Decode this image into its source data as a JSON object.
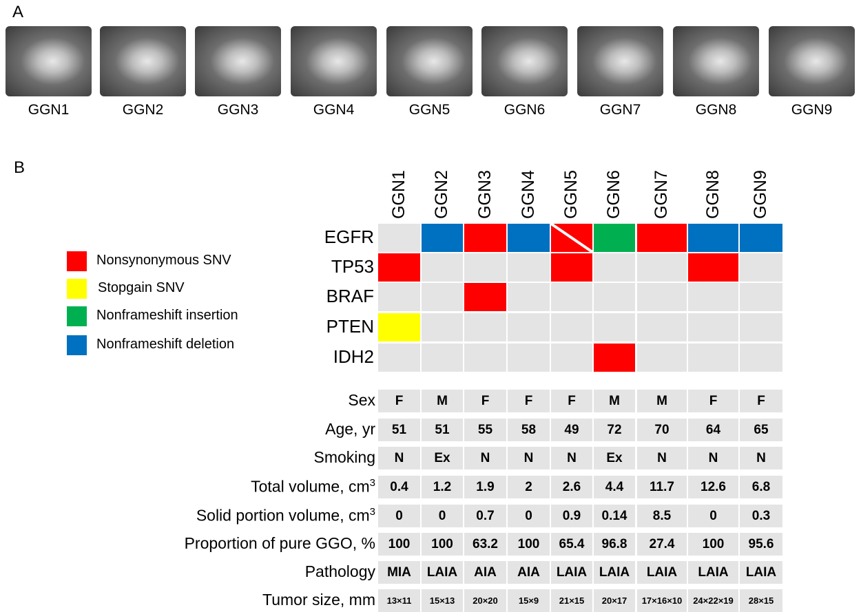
{
  "panel_a": {
    "label": "A",
    "images": [
      {
        "caption": "GGN1"
      },
      {
        "caption": "GGN2"
      },
      {
        "caption": "GGN3"
      },
      {
        "caption": "GGN4"
      },
      {
        "caption": "GGN5"
      },
      {
        "caption": "GGN6"
      },
      {
        "caption": "GGN7"
      },
      {
        "caption": "GGN8"
      },
      {
        "caption": "GGN9"
      }
    ]
  },
  "panel_b": {
    "label": "B",
    "columns": [
      "GGN1",
      "GGN2",
      "GGN3",
      "GGN4",
      "GGN5",
      "GGN6",
      "GGN7",
      "GGN8",
      "GGN9"
    ],
    "legend": [
      {
        "label": "Nonsynonymous SNV",
        "color": "#ff0000"
      },
      {
        "label": "Stopgain SNV",
        "color": "#ffff00"
      },
      {
        "label": "Nonframeshift insertion",
        "color": "#00b050"
      },
      {
        "label": "Nonframeshift deletion",
        "color": "#0070c0"
      }
    ],
    "genes": [
      {
        "name": "EGFR",
        "cells": [
          null,
          "#0070c0",
          "#ff0000",
          "#0070c0",
          [
            "#ff0000",
            "#ff0000"
          ],
          "#00b050",
          "#ff0000",
          "#0070c0",
          "#0070c0"
        ]
      },
      {
        "name": "TP53",
        "cells": [
          "#ff0000",
          null,
          null,
          null,
          "#ff0000",
          null,
          null,
          "#ff0000",
          null
        ]
      },
      {
        "name": "BRAF",
        "cells": [
          null,
          null,
          "#ff0000",
          null,
          null,
          null,
          null,
          null,
          null
        ]
      },
      {
        "name": "PTEN",
        "cells": [
          "#ffff00",
          null,
          null,
          null,
          null,
          null,
          null,
          null,
          null
        ]
      },
      {
        "name": "IDH2",
        "cells": [
          null,
          null,
          null,
          null,
          null,
          "#ff0000",
          null,
          null,
          null
        ]
      }
    ],
    "clinical": [
      {
        "label": "Sex",
        "values": [
          "F",
          "M",
          "F",
          "F",
          "F",
          "M",
          "M",
          "F",
          "F"
        ]
      },
      {
        "label": "Age, yr",
        "values": [
          "51",
          "51",
          "55",
          "58",
          "49",
          "72",
          "70",
          "64",
          "65"
        ]
      },
      {
        "label": "Smoking",
        "values": [
          "N",
          "Ex",
          "N",
          "N",
          "N",
          "Ex",
          "N",
          "N",
          "N"
        ]
      },
      {
        "label": "Total volume, cm",
        "sup": "3",
        "values": [
          "0.4",
          "1.2",
          "1.9",
          "2",
          "2.6",
          "4.4",
          "11.7",
          "12.6",
          "6.8"
        ]
      },
      {
        "label": "Solid portion volume, cm",
        "sup": "3",
        "values": [
          "0",
          "0",
          "0.7",
          "0",
          "0.9",
          "0.14",
          "8.5",
          "0",
          "0.3"
        ]
      },
      {
        "label": "Proportion of pure GGO, %",
        "values": [
          "100",
          "100",
          "63.2",
          "100",
          "65.4",
          "96.8",
          "27.4",
          "100",
          "95.6"
        ]
      },
      {
        "label": "Pathology",
        "values": [
          "MIA",
          "LAIA",
          "AIA",
          "AIA",
          "LAIA",
          "LAIA",
          "LAIA",
          "LAIA",
          "LAIA"
        ]
      },
      {
        "label": "Tumor size, mm",
        "values": [
          "13×11",
          "15×13",
          "20×20",
          "15×9",
          "21×15",
          "20×17",
          "17×16×10",
          "24×22×19",
          "28×15"
        ]
      }
    ]
  }
}
